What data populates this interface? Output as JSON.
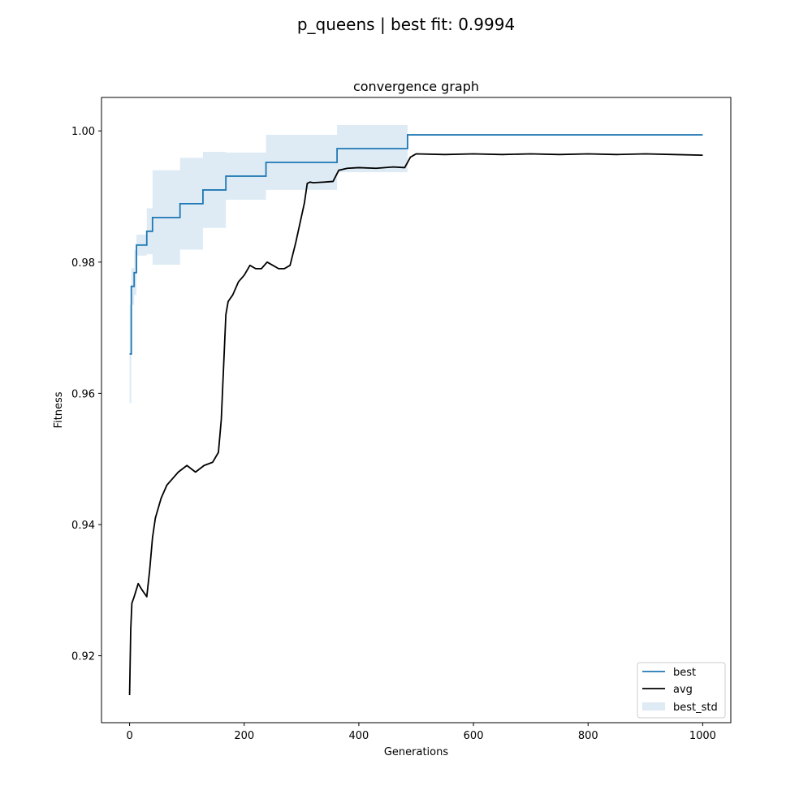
{
  "figure": {
    "suptitle": "p_queens | best fit: 0.9994"
  },
  "chart_data": {
    "type": "line",
    "title": "convergence graph",
    "xlabel": "Generations",
    "ylabel": "Fitness",
    "xlim": [
      -49,
      1049
    ],
    "ylim": [
      0.9098,
      1.0051
    ],
    "xticks": [
      0,
      200,
      400,
      600,
      800,
      1000
    ],
    "xtick_labels": [
      "0",
      "200",
      "400",
      "600",
      "800",
      "1000"
    ],
    "yticks": [
      0.92,
      0.94,
      0.96,
      0.98,
      1.0
    ],
    "ytick_labels": [
      "0.92",
      "0.94",
      "0.96",
      "0.98",
      "1.00"
    ],
    "grid": false,
    "legend_position": "lower-right",
    "colors": {
      "best": "#1f77b4",
      "avg": "#000000",
      "best_std": "#1f77b4"
    },
    "series": [
      {
        "name": "best",
        "kind": "step",
        "x": [
          0,
          3,
          8,
          12,
          30,
          40,
          88,
          128,
          168,
          238,
          362,
          485,
          1000
        ],
        "values": [
          0.966,
          0.9763,
          0.9784,
          0.9826,
          0.9847,
          0.9868,
          0.9889,
          0.991,
          0.9931,
          0.9952,
          0.9973,
          0.9994,
          0.9994
        ]
      },
      {
        "name": "avg",
        "kind": "line",
        "x": [
          0,
          2,
          4,
          8,
          15,
          22,
          30,
          35,
          40,
          45,
          55,
          65,
          75,
          85,
          100,
          115,
          130,
          145,
          155,
          160,
          163,
          166,
          168,
          172,
          180,
          190,
          200,
          210,
          220,
          230,
          240,
          250,
          260,
          270,
          280,
          290,
          300,
          305,
          310,
          315,
          320,
          340,
          355,
          365,
          380,
          400,
          430,
          460,
          480,
          490,
          500,
          550,
          600,
          650,
          700,
          750,
          800,
          850,
          900,
          950,
          1000
        ],
        "values": [
          0.914,
          0.924,
          0.928,
          0.929,
          0.931,
          0.93,
          0.929,
          0.933,
          0.938,
          0.941,
          0.944,
          0.946,
          0.947,
          0.948,
          0.949,
          0.948,
          0.949,
          0.9495,
          0.951,
          0.956,
          0.962,
          0.968,
          0.972,
          0.974,
          0.975,
          0.977,
          0.978,
          0.9795,
          0.979,
          0.979,
          0.98,
          0.9795,
          0.979,
          0.979,
          0.9795,
          0.983,
          0.987,
          0.989,
          0.992,
          0.9922,
          0.9921,
          0.9922,
          0.9923,
          0.994,
          0.9943,
          0.9944,
          0.9943,
          0.9945,
          0.9944,
          0.996,
          0.9965,
          0.9964,
          0.9965,
          0.9964,
          0.9965,
          0.9964,
          0.9965,
          0.9964,
          0.9965,
          0.9964,
          0.9963
        ]
      },
      {
        "name": "best_std",
        "kind": "band",
        "x": [
          0,
          3,
          8,
          12,
          30,
          40,
          88,
          128,
          168,
          238,
          362,
          485,
          1000
        ],
        "lower": [
          0.9585,
          0.9735,
          0.975,
          0.981,
          0.9812,
          0.9796,
          0.9819,
          0.9852,
          0.9895,
          0.991,
          0.9937,
          0.9994,
          0.9994
        ],
        "upper": [
          0.9735,
          0.9791,
          0.9818,
          0.9842,
          0.9882,
          0.994,
          0.9959,
          0.9968,
          0.9967,
          0.9994,
          1.0009,
          0.9994,
          0.9994
        ]
      }
    ]
  }
}
